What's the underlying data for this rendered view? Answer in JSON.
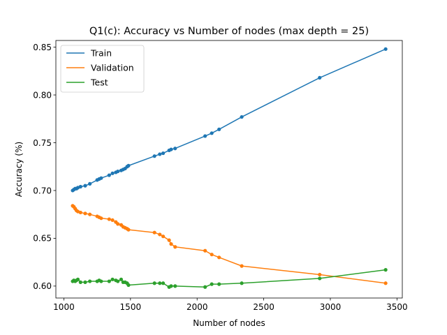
{
  "chart_data": {
    "type": "line",
    "title": "Q1(c): Accuracy vs Number of nodes (max depth = 25)",
    "xlabel": "Number of nodes",
    "ylabel": "Accuracy (%)",
    "xlim": [
      940,
      3540
    ],
    "ylim": [
      0.5875,
      0.857
    ],
    "xticks": [
      1000,
      1500,
      2000,
      2500,
      3000,
      3500
    ],
    "xtick_labels": [
      "1000",
      "1500",
      "2000",
      "2500",
      "3000",
      "3500"
    ],
    "yticks": [
      0.6,
      0.65,
      0.7,
      0.75,
      0.8,
      0.85
    ],
    "ytick_labels": [
      "0.60",
      "0.65",
      "0.70",
      "0.75",
      "0.80",
      "0.85"
    ],
    "grid": false,
    "legend_position": "top-left",
    "x": [
      1066,
      1075,
      1085,
      1095,
      1105,
      1125,
      1160,
      1195,
      1250,
      1265,
      1280,
      1340,
      1365,
      1390,
      1405,
      1430,
      1445,
      1460,
      1475,
      1485,
      1680,
      1720,
      1745,
      1790,
      1805,
      1835,
      2060,
      2110,
      2165,
      2335,
      2920,
      3415
    ],
    "series": [
      {
        "name": "Train",
        "color": "#1f77b4",
        "values": [
          0.7,
          0.701,
          0.702,
          0.702,
          0.703,
          0.704,
          0.705,
          0.707,
          0.711,
          0.712,
          0.713,
          0.716,
          0.718,
          0.719,
          0.72,
          0.721,
          0.722,
          0.723,
          0.725,
          0.726,
          0.736,
          0.738,
          0.739,
          0.742,
          0.743,
          0.744,
          0.757,
          0.76,
          0.764,
          0.777,
          0.818,
          0.848
        ]
      },
      {
        "name": "Validation",
        "color": "#ff7f0e",
        "values": [
          0.684,
          0.683,
          0.681,
          0.679,
          0.678,
          0.677,
          0.676,
          0.675,
          0.673,
          0.672,
          0.671,
          0.67,
          0.669,
          0.667,
          0.665,
          0.664,
          0.662,
          0.661,
          0.66,
          0.659,
          0.656,
          0.654,
          0.652,
          0.648,
          0.644,
          0.641,
          0.637,
          0.633,
          0.63,
          0.621,
          0.612,
          0.603
        ]
      },
      {
        "name": "Test",
        "color": "#2ca02c",
        "values": [
          0.605,
          0.606,
          0.605,
          0.606,
          0.607,
          0.604,
          0.604,
          0.605,
          0.605,
          0.606,
          0.605,
          0.605,
          0.607,
          0.606,
          0.605,
          0.607,
          0.604,
          0.604,
          0.603,
          0.601,
          0.603,
          0.603,
          0.603,
          0.599,
          0.6,
          0.6,
          0.599,
          0.602,
          0.602,
          0.603,
          0.608,
          0.617
        ]
      }
    ]
  }
}
